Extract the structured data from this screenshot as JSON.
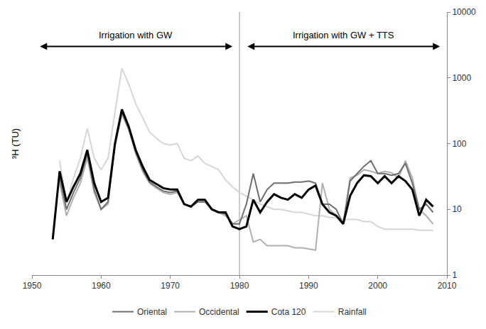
{
  "chart_data": {
    "type": "line",
    "y_label": "³H (TU)",
    "log": "y",
    "grid": false,
    "legend": "bottom",
    "x": [
      1953,
      1954,
      1955,
      1956,
      1957,
      1958,
      1959,
      1960,
      1961,
      1962,
      1963,
      1964,
      1965,
      1966,
      1967,
      1968,
      1969,
      1970,
      1971,
      1972,
      1973,
      1974,
      1975,
      1976,
      1977,
      1978,
      1979,
      1980,
      1981,
      1982,
      1983,
      1984,
      1985,
      1986,
      1987,
      1988,
      1989,
      1990,
      1991,
      1992,
      1993,
      1994,
      1995,
      1996,
      1997,
      1998,
      1999,
      2000,
      2001,
      2002,
      2003,
      2004,
      2005,
      2006,
      2007,
      2008
    ],
    "series": [
      {
        "name": "Oriental",
        "color": "#6e6e6e",
        "values": [
          null,
          30,
          10,
          18,
          30,
          70,
          20,
          10,
          13,
          100,
          300,
          170,
          75,
          40,
          26,
          22,
          19,
          18,
          19,
          12,
          11,
          13,
          13,
          10,
          9,
          8.5,
          6,
          6,
          12,
          35,
          13,
          20,
          25,
          25,
          25,
          26,
          26,
          27,
          25,
          12,
          12,
          10,
          6,
          27,
          35,
          45,
          55,
          35,
          35,
          33,
          35,
          50,
          25,
          10,
          12,
          9
        ]
      },
      {
        "name": "Occidental",
        "color": "#b0b0b0",
        "values": [
          null,
          25,
          8,
          15,
          25,
          60,
          18,
          10,
          12,
          90,
          280,
          160,
          70,
          38,
          25,
          21,
          18,
          17,
          18,
          12,
          11,
          13,
          13,
          10,
          9,
          8,
          6,
          7,
          8,
          3.2,
          3.5,
          2.8,
          2.8,
          2.8,
          2.8,
          2.6,
          2.6,
          2.5,
          2.4,
          25,
          10,
          8,
          6,
          30,
          33,
          40,
          38,
          35,
          38,
          36,
          30,
          55,
          30,
          10,
          8,
          6
        ]
      },
      {
        "name": "Cota 120",
        "color": "#000000",
        "values": [
          3.5,
          38,
          13,
          22,
          35,
          80,
          25,
          13,
          15,
          100,
          330,
          180,
          80,
          45,
          28,
          24,
          21,
          20,
          20,
          12,
          11,
          14,
          14,
          10,
          9,
          9,
          5.5,
          5,
          5.5,
          14,
          9,
          13,
          17,
          15,
          14,
          17,
          15,
          20,
          23,
          12,
          9,
          8,
          6,
          16,
          25,
          33,
          32,
          25,
          32,
          25,
          32,
          27,
          20,
          8,
          14,
          11
        ]
      },
      {
        "name": "Rainfall",
        "color": "#d6d6d6",
        "values": [
          null,
          55,
          12,
          30,
          60,
          170,
          60,
          40,
          60,
          300,
          1400,
          800,
          400,
          250,
          150,
          120,
          100,
          95,
          100,
          60,
          55,
          65,
          50,
          45,
          40,
          28,
          22,
          18,
          16,
          14,
          12,
          11,
          10,
          10,
          9.5,
          9,
          9,
          8.5,
          8,
          8,
          7.5,
          7.5,
          7,
          7,
          7,
          6.5,
          6.5,
          5.5,
          5,
          5,
          5,
          5,
          5,
          4.8,
          4.8,
          4.8
        ]
      }
    ],
    "xlim": [
      1950,
      2010
    ],
    "xticks": [
      1950,
      1960,
      1970,
      1980,
      1990,
      2000,
      2010
    ],
    "ylim": [
      1,
      10000
    ],
    "yticks": [
      1,
      10,
      100,
      1000,
      10000
    ],
    "vlines": [
      1980
    ],
    "annotations": [
      {
        "text": "Irrigation with GW",
        "x0": 1951,
        "x1": 1979,
        "y": 3000
      },
      {
        "text": "Irrigation with GW + TTS",
        "x0": 1981,
        "x1": 2009,
        "y": 3000
      }
    ]
  }
}
